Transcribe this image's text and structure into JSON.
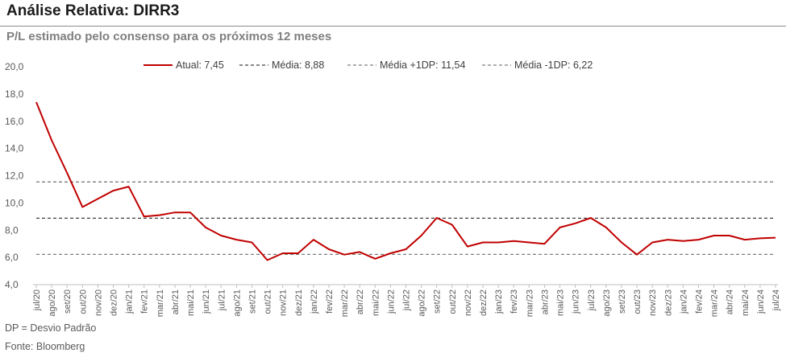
{
  "header": {
    "title": "Análise Relativa: DIRR3",
    "subtitle": "P/L estimado pelo consenso para os próximos 12 meses"
  },
  "footer": {
    "footnote": "DP = Desvio Padrão",
    "source": "Fonte: Bloomberg"
  },
  "colors": {
    "series": "#c00000",
    "reference": "#7f7f7f",
    "mean": "#404040"
  },
  "chart_data": {
    "type": "line",
    "ylim": [
      4.0,
      20.0
    ],
    "yticks": [
      "4,0",
      "6,0",
      "8,0",
      "10,0",
      "12,0",
      "14,0",
      "16,0",
      "18,0",
      "20,0"
    ],
    "yticks_values": [
      4,
      6,
      8,
      10,
      12,
      14,
      16,
      18,
      20
    ],
    "xticks": [
      "jul/20",
      "ago/20",
      "set/20",
      "out/20",
      "nov/20",
      "dez/20",
      "jan/21",
      "fev/21",
      "mar/21",
      "abr/21",
      "mai/21",
      "jun/21",
      "jul/21",
      "ago/21",
      "set/21",
      "out/21",
      "nov/21",
      "dez/21",
      "jan/22",
      "fev/22",
      "mar/22",
      "abr/22",
      "mai/22",
      "jun/22",
      "jul/22",
      "ago/22",
      "set/22",
      "out/22",
      "nov/22",
      "dez/22",
      "jan/23",
      "fev/23",
      "mar/23",
      "abr/23",
      "mai/23",
      "jun/23",
      "jul/23",
      "ago/23",
      "set/23",
      "out/23",
      "nov/23",
      "dez/23",
      "jan/24",
      "fev/24",
      "mar/24",
      "abr/24",
      "mai/24",
      "jun/24",
      "jul/24"
    ],
    "legend_position": "top",
    "grid": false,
    "series": [
      {
        "name": "Atual: 7,45",
        "x": [
          "jul/20",
          "ago/20",
          "set/20",
          "out/20",
          "nov/20",
          "dez/20",
          "jan/21",
          "fev/21",
          "mar/21",
          "abr/21",
          "mai/21",
          "jun/21",
          "jul/21",
          "ago/21",
          "set/21",
          "out/21",
          "nov/21",
          "dez/21",
          "jan/22",
          "fev/22",
          "mar/22",
          "abr/22",
          "mai/22",
          "jun/22",
          "jul/22",
          "ago/22",
          "set/22",
          "out/22",
          "nov/22",
          "dez/22",
          "jan/23",
          "fev/23",
          "mar/23",
          "abr/23",
          "mai/23",
          "jun/23",
          "jul/23",
          "ago/23",
          "set/23",
          "out/23",
          "nov/23",
          "dez/23",
          "jan/24",
          "fev/24",
          "mar/24",
          "abr/24",
          "mai/24",
          "jun/24",
          "jul/24"
        ],
        "values": [
          17.4,
          14.6,
          12.2,
          9.7,
          10.3,
          10.9,
          11.2,
          9.0,
          9.1,
          9.3,
          9.3,
          8.2,
          7.6,
          7.3,
          7.1,
          5.8,
          6.3,
          6.3,
          7.3,
          6.6,
          6.2,
          6.4,
          5.9,
          6.3,
          6.6,
          7.6,
          8.9,
          8.4,
          6.8,
          7.1,
          7.1,
          7.2,
          7.1,
          7.0,
          8.2,
          8.5,
          8.9,
          8.2,
          7.1,
          6.2,
          7.1,
          7.3,
          7.2,
          7.3,
          7.6,
          7.6,
          7.3,
          7.4,
          7.45
        ]
      },
      {
        "name": "Média: 8,88",
        "value": 8.88
      },
      {
        "name": "Média +1DP: 11,54",
        "value": 11.54
      },
      {
        "name": "Média -1DP: 6,22",
        "value": 6.22
      }
    ]
  }
}
